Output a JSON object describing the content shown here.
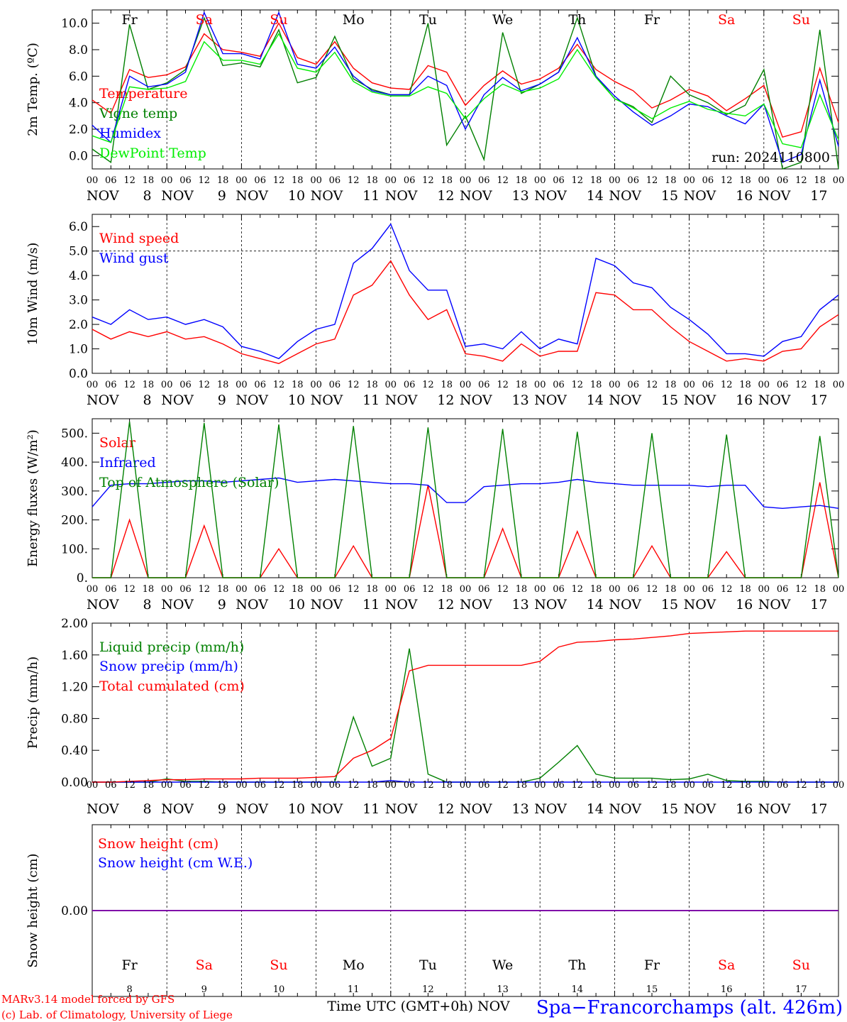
{
  "colors": {
    "red": "#ff0000",
    "green": "#008000",
    "blue": "#0000ff",
    "lightgreen": "#00ee00",
    "purple": "#8000a0",
    "black": "#000000"
  },
  "days": [
    {
      "dow": "Fr",
      "date": "8",
      "weekend": false
    },
    {
      "dow": "Sa",
      "date": "9",
      "weekend": true
    },
    {
      "dow": "Su",
      "date": "10",
      "weekend": true
    },
    {
      "dow": "Mo",
      "date": "11",
      "weekend": false
    },
    {
      "dow": "Tu",
      "date": "12",
      "weekend": false
    },
    {
      "dow": "We",
      "date": "13",
      "weekend": false
    },
    {
      "dow": "Th",
      "date": "14",
      "weekend": false
    },
    {
      "dow": "Fr",
      "date": "15",
      "weekend": false
    },
    {
      "dow": "Sa",
      "date": "16",
      "weekend": true
    },
    {
      "dow": "Su",
      "date": "17",
      "weekend": true
    }
  ],
  "hour_ticks": [
    "00",
    "06",
    "12",
    "18"
  ],
  "month_label": "NOV",
  "run_label": "run: 2024110800",
  "x_axis_title": "Time UTC (GMT+0h) NOV",
  "station_label": "Spa−Francorchamps (alt. 426m)",
  "footer": [
    "MARv3.14 model forced by GFS",
    "(c) Lab. of Climatology, University of Liege"
  ],
  "chart_data": [
    {
      "type": "line",
      "ylabel": "2m Temp. (ºC)",
      "ylim": [
        -1,
        11
      ],
      "yticks": [
        0,
        2,
        4,
        6,
        8,
        10
      ],
      "ytick_labels": [
        "0.0",
        "2.0",
        "4.0",
        "6.0",
        "8.0",
        "10.0"
      ],
      "x_hours": [
        0,
        6,
        12,
        18,
        24,
        30,
        36,
        42,
        48,
        54,
        60,
        66,
        72,
        78,
        84,
        90,
        96,
        102,
        108,
        114,
        120,
        126,
        132,
        138,
        144,
        150,
        156,
        162,
        168,
        174,
        180,
        186,
        192,
        198,
        204,
        210,
        216,
        222,
        228,
        234,
        240
      ],
      "series": [
        {
          "name": "Temperature",
          "color": "red",
          "values": [
            4.2,
            3.2,
            6.5,
            5.9,
            6.1,
            6.7,
            9.2,
            8.0,
            7.8,
            7.5,
            10.0,
            7.4,
            6.9,
            8.6,
            6.6,
            5.5,
            5.1,
            5.0,
            6.8,
            6.3,
            3.8,
            5.3,
            6.4,
            5.4,
            5.8,
            6.6,
            8.4,
            6.5,
            5.6,
            4.9,
            3.6,
            4.2,
            5.0,
            4.5,
            3.4,
            4.3,
            5.3,
            1.4,
            1.8,
            6.6,
            2.5
          ]
        },
        {
          "name": "Vigne temp",
          "color": "green",
          "values": [
            0.5,
            -0.5,
            9.9,
            5.0,
            5.5,
            6.5,
            10.4,
            6.8,
            7.0,
            6.7,
            9.5,
            5.5,
            5.9,
            9.0,
            5.8,
            5.0,
            4.6,
            4.6,
            10.0,
            0.8,
            3.0,
            -0.3,
            9.3,
            4.7,
            5.4,
            6.3,
            10.4,
            6.0,
            4.3,
            3.7,
            2.5,
            6.0,
            4.6,
            4.0,
            3.1,
            3.8,
            6.5,
            -1.0,
            -0.5,
            9.5,
            -1.0
          ]
        },
        {
          "name": "Humidex",
          "color": "blue",
          "values": [
            2.3,
            1.0,
            6.0,
            5.2,
            5.4,
            6.3,
            10.8,
            7.7,
            7.7,
            7.3,
            10.8,
            6.9,
            6.6,
            8.2,
            6.0,
            4.9,
            4.6,
            4.6,
            6.0,
            5.3,
            2.0,
            4.6,
            5.9,
            4.9,
            5.4,
            6.3,
            8.9,
            6.0,
            4.5,
            3.3,
            2.3,
            3.0,
            3.9,
            3.7,
            3.0,
            2.4,
            3.9,
            -0.5,
            0.1,
            5.7,
            0.7
          ]
        },
        {
          "name": "DewPoint Temp",
          "color": "lightgreen",
          "values": [
            1.5,
            1.0,
            5.2,
            5.0,
            5.1,
            5.6,
            8.6,
            7.2,
            7.2,
            6.9,
            9.2,
            6.6,
            6.3,
            7.8,
            5.6,
            4.8,
            4.5,
            4.5,
            5.2,
            4.7,
            2.8,
            4.3,
            5.4,
            4.8,
            5.1,
            5.8,
            8.0,
            5.9,
            4.3,
            3.6,
            2.8,
            3.6,
            4.1,
            3.5,
            3.2,
            3.0,
            3.9,
            0.9,
            0.6,
            4.6,
            1.2
          ]
        }
      ]
    },
    {
      "type": "line",
      "ylabel": "10m Wind (m/s)",
      "ylim": [
        0,
        6.5
      ],
      "yticks": [
        0,
        1,
        2,
        3,
        4,
        5,
        6
      ],
      "ytick_labels": [
        "0.0",
        "1.0",
        "2.0",
        "3.0",
        "4.0",
        "5.0",
        "6.0"
      ],
      "reference_line": 5.0,
      "x_hours": [
        0,
        6,
        12,
        18,
        24,
        30,
        36,
        42,
        48,
        54,
        60,
        66,
        72,
        78,
        84,
        90,
        96,
        102,
        108,
        114,
        120,
        126,
        132,
        138,
        144,
        150,
        156,
        162,
        168,
        174,
        180,
        186,
        192,
        198,
        204,
        210,
        216,
        222,
        228,
        234,
        240
      ],
      "series": [
        {
          "name": "Wind speed",
          "color": "red",
          "values": [
            1.8,
            1.4,
            1.7,
            1.5,
            1.7,
            1.4,
            1.5,
            1.2,
            0.8,
            0.6,
            0.4,
            0.8,
            1.2,
            1.4,
            3.2,
            3.6,
            4.6,
            3.2,
            2.2,
            2.6,
            0.8,
            0.7,
            0.5,
            1.2,
            0.7,
            0.9,
            0.9,
            3.3,
            3.2,
            2.6,
            2.6,
            1.9,
            1.3,
            0.9,
            0.5,
            0.6,
            0.5,
            0.9,
            1.0,
            1.9,
            2.4
          ]
        },
        {
          "name": "Wind gust",
          "color": "blue",
          "values": [
            2.3,
            2.0,
            2.6,
            2.2,
            2.3,
            2.0,
            2.2,
            1.9,
            1.1,
            0.9,
            0.6,
            1.3,
            1.8,
            2.0,
            4.5,
            5.1,
            6.1,
            4.2,
            3.4,
            3.4,
            1.1,
            1.2,
            1.0,
            1.7,
            1.0,
            1.4,
            1.2,
            4.7,
            4.4,
            3.7,
            3.5,
            2.7,
            2.2,
            1.6,
            0.8,
            0.8,
            0.7,
            1.3,
            1.5,
            2.6,
            3.2
          ]
        }
      ]
    },
    {
      "type": "line",
      "ylabel": "Energy fluxes (W/m²)",
      "ylim": [
        0,
        550
      ],
      "yticks": [
        0,
        100,
        200,
        300,
        400,
        500
      ],
      "ytick_labels": [
        "0.",
        "100.",
        "200.",
        "300.",
        "400.",
        "500."
      ],
      "series_hours": {
        "Solar": [
          0,
          6,
          12,
          18,
          24,
          30,
          36,
          42,
          48,
          54,
          60,
          66,
          72,
          78,
          84,
          90,
          96,
          102,
          108,
          114,
          120,
          126,
          132,
          138,
          144,
          150,
          156,
          162,
          168,
          174,
          180,
          186,
          192,
          198,
          204,
          210,
          216,
          222,
          228,
          234,
          240
        ],
        "Infrared": [
          0,
          6,
          12,
          18,
          24,
          30,
          36,
          42,
          48,
          54,
          60,
          66,
          72,
          78,
          84,
          90,
          96,
          102,
          108,
          114,
          120,
          126,
          132,
          138,
          144,
          150,
          156,
          162,
          168,
          174,
          180,
          186,
          192,
          198,
          204,
          210,
          216,
          222,
          228,
          234,
          240
        ],
        "Top of Atmosphere (Solar)": [
          0,
          6,
          12,
          18,
          24,
          30,
          36,
          42,
          48,
          54,
          60,
          66,
          72,
          78,
          84,
          90,
          96,
          102,
          108,
          114,
          120,
          126,
          132,
          138,
          144,
          150,
          156,
          162,
          168,
          174,
          180,
          186,
          192,
          198,
          204,
          210,
          216,
          222,
          228,
          234,
          240
        ]
      },
      "series": [
        {
          "name": "Solar",
          "color": "red",
          "values": [
            0,
            0,
            200,
            0,
            0,
            0,
            180,
            0,
            0,
            0,
            100,
            0,
            0,
            0,
            110,
            0,
            0,
            0,
            320,
            0,
            0,
            0,
            170,
            0,
            0,
            0,
            160,
            0,
            0,
            0,
            110,
            0,
            0,
            0,
            90,
            0,
            0,
            0,
            0,
            330,
            0
          ]
        },
        {
          "name": "Infrared",
          "color": "blue",
          "values": [
            245,
            320,
            325,
            325,
            330,
            335,
            335,
            330,
            335,
            340,
            345,
            330,
            335,
            340,
            335,
            330,
            325,
            325,
            320,
            260,
            260,
            315,
            320,
            325,
            325,
            330,
            340,
            330,
            325,
            320,
            320,
            320,
            320,
            315,
            320,
            320,
            245,
            240,
            245,
            250,
            240
          ]
        },
        {
          "name": "Top of Atmosphere (Solar)",
          "color": "green",
          "values": [
            0,
            0,
            540,
            0,
            0,
            0,
            535,
            0,
            0,
            0,
            530,
            0,
            0,
            0,
            525,
            0,
            0,
            0,
            520,
            0,
            0,
            0,
            515,
            0,
            0,
            0,
            505,
            0,
            0,
            0,
            500,
            0,
            0,
            0,
            495,
            0,
            0,
            0,
            0,
            490,
            0
          ]
        }
      ]
    },
    {
      "type": "line",
      "ylabel": "Precip (mm/h)",
      "ylim": [
        0,
        2.0
      ],
      "yticks": [
        0,
        0.4,
        0.8,
        1.2,
        1.6,
        2.0
      ],
      "ytick_labels": [
        "0.00",
        "0.40",
        "0.80",
        "1.20",
        "1.60",
        "2.00"
      ],
      "x_hours": [
        0,
        6,
        12,
        18,
        24,
        30,
        36,
        42,
        48,
        54,
        60,
        66,
        72,
        78,
        84,
        90,
        96,
        102,
        108,
        114,
        120,
        126,
        132,
        138,
        144,
        150,
        156,
        162,
        168,
        174,
        180,
        186,
        192,
        198,
        204,
        210,
        216,
        222,
        228,
        234,
        240
      ],
      "series": [
        {
          "name": "Liquid precip (mm/h)",
          "color": "green",
          "values": [
            0,
            0,
            0,
            0,
            0.04,
            0.01,
            0.01,
            0,
            0,
            0,
            0,
            0,
            0,
            0,
            0.82,
            0.2,
            0.3,
            1.68,
            0.1,
            0,
            0,
            0,
            0,
            0,
            0.05,
            0.25,
            0.46,
            0.1,
            0.05,
            0.05,
            0.05,
            0.03,
            0.04,
            0.1,
            0.02,
            0.01,
            0.01,
            0,
            0,
            0,
            0
          ]
        },
        {
          "name": "Snow precip (mm/h)",
          "color": "blue",
          "values": [
            0,
            0,
            0,
            0,
            0,
            0,
            0,
            0,
            0,
            0,
            0,
            0,
            0,
            0,
            0,
            0,
            0.02,
            0,
            0,
            0,
            0,
            0,
            0,
            0,
            0,
            0,
            0,
            0,
            0,
            0,
            0,
            0,
            0,
            0,
            0,
            0,
            0,
            0,
            0,
            0,
            0
          ]
        },
        {
          "name": "Total cumulated (cm)",
          "color": "red",
          "values": [
            0,
            0,
            0.01,
            0.02,
            0.03,
            0.03,
            0.04,
            0.04,
            0.04,
            0.05,
            0.05,
            0.05,
            0.06,
            0.07,
            0.3,
            0.4,
            0.55,
            1.4,
            1.47,
            1.47,
            1.47,
            1.47,
            1.47,
            1.47,
            1.52,
            1.7,
            1.76,
            1.77,
            1.79,
            1.8,
            1.82,
            1.84,
            1.87,
            1.88,
            1.89,
            1.9,
            1.9,
            1.9,
            1.9,
            1.9,
            1.9
          ]
        }
      ]
    },
    {
      "type": "line",
      "ylabel": "Snow height (cm)",
      "ylim": [
        -1,
        1
      ],
      "yticks": [
        0
      ],
      "ytick_labels": [
        "0.00"
      ],
      "x_hours": [
        0,
        240
      ],
      "series": [
        {
          "name": "Snow height (cm)",
          "color": "red",
          "values": [
            0,
            0
          ]
        },
        {
          "name": "Snow height (cm W.E.)",
          "color": "blue",
          "values": [
            0,
            0
          ]
        }
      ]
    }
  ]
}
